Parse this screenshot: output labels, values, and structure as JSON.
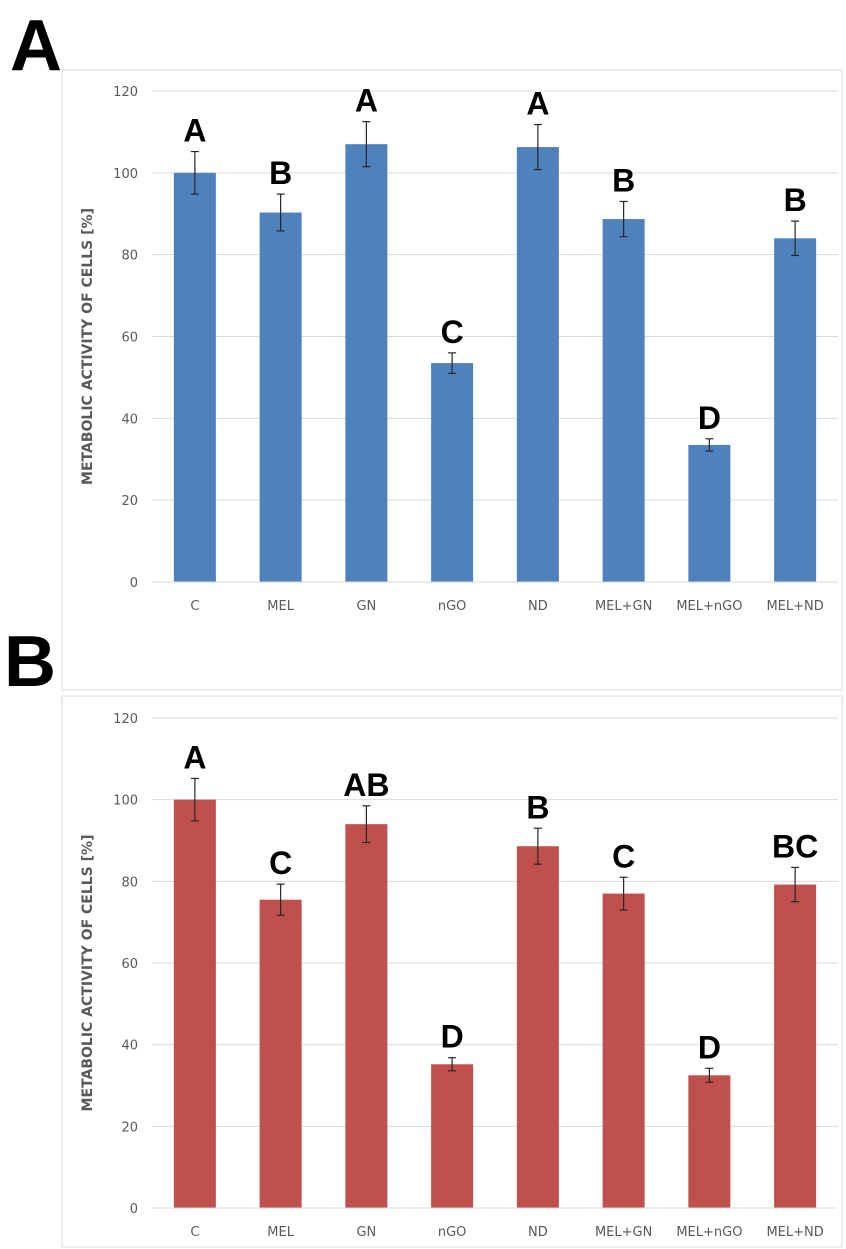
{
  "panels": [
    {
      "letter": "A"
    },
    {
      "letter": "B"
    }
  ],
  "chart_data": [
    {
      "type": "bar",
      "panel": "A",
      "categories": [
        "C",
        "MEL",
        "GN",
        "nGO",
        "ND",
        "MEL+GN",
        "MEL+nGO",
        "MEL+ND"
      ],
      "values": [
        100,
        90.3,
        107,
        53.5,
        106.3,
        88.7,
        33.5,
        84
      ],
      "errors": [
        5.2,
        4.5,
        5.5,
        2.5,
        5.5,
        4.3,
        1.5,
        4.2
      ],
      "labels": [
        "A",
        "B",
        "A",
        "C",
        "A",
        "B",
        "D",
        "B"
      ],
      "ylabel": "METABOLIC ACTIVITY OF CELLS [%]",
      "ylim": [
        0,
        120
      ],
      "yticks": [
        0,
        20,
        40,
        60,
        80,
        100,
        120
      ],
      "color": "#4f81bd",
      "grid": true
    },
    {
      "type": "bar",
      "panel": "B",
      "categories": [
        "C",
        "MEL",
        "GN",
        "nGO",
        "ND",
        "MEL+GN",
        "MEL+nGO",
        "MEL+ND"
      ],
      "values": [
        100,
        75.5,
        94,
        35.2,
        88.6,
        77,
        32.5,
        79.2
      ],
      "errors": [
        5.2,
        3.8,
        4.5,
        1.6,
        4.4,
        4,
        1.7,
        4.2
      ],
      "labels": [
        "A",
        "C",
        "AB",
        "D",
        "B",
        "C",
        "D",
        "BC"
      ],
      "ylabel": "METABOLIC ACTIVITY OF CELLS [%]",
      "ylim": [
        0,
        120
      ],
      "yticks": [
        0,
        20,
        40,
        60,
        80,
        100,
        120
      ],
      "color": "#c0504d",
      "grid": true
    }
  ]
}
